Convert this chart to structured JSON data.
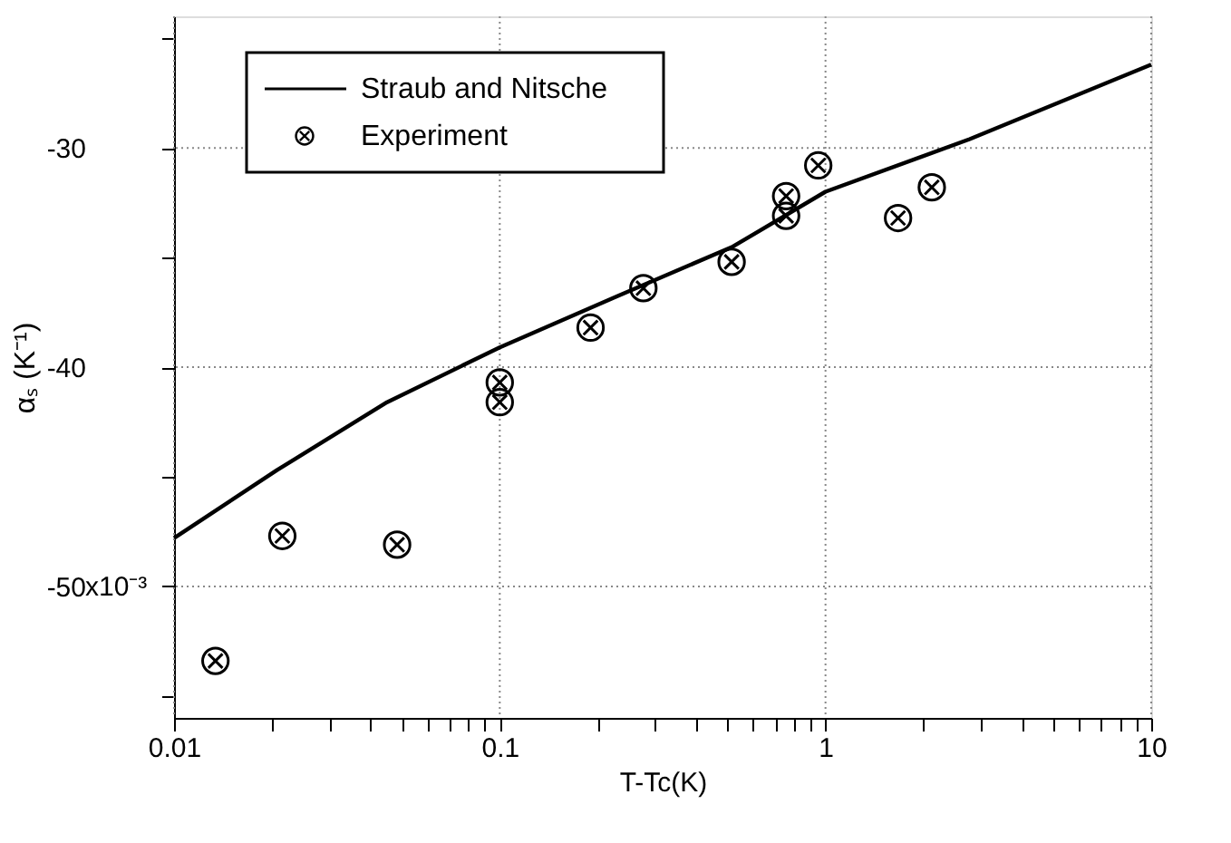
{
  "chart_data": {
    "type": "scatter",
    "xlabel": "T-Tc(K)",
    "ylabel": "αₛ (K⁻¹)",
    "annotations": [
      "x10⁻³"
    ],
    "log": "x",
    "grid": true,
    "legend": "top left",
    "xlim": [
      0.01,
      10
    ],
    "ylim": [
      -56,
      -24
    ],
    "xticks": [
      0.01,
      {
        "value": 0.02,
        "label": null
      },
      {
        "value": 0.03,
        "label": null
      },
      {
        "value": 0.04,
        "label": null
      },
      {
        "value": 0.05,
        "label": null
      },
      {
        "value": 0.06,
        "label": null
      },
      {
        "value": 0.07,
        "label": null
      },
      {
        "value": 0.08,
        "label": null
      },
      {
        "value": 0.09,
        "label": null
      },
      0.1,
      {
        "value": 0.2,
        "label": null
      },
      {
        "value": 0.3,
        "label": null
      },
      {
        "value": 0.4,
        "label": null
      },
      {
        "value": 0.5,
        "label": null
      },
      {
        "value": 0.6,
        "label": null
      },
      {
        "value": 0.7,
        "label": null
      },
      {
        "value": 0.8,
        "label": null
      },
      {
        "value": 0.9,
        "label": null
      },
      1,
      {
        "value": 2,
        "label": null
      },
      {
        "value": 3,
        "label": null
      },
      {
        "value": 4,
        "label": null
      },
      {
        "value": 5,
        "label": null
      },
      {
        "value": 6,
        "label": null
      },
      {
        "value": 7,
        "label": null
      },
      {
        "value": 8,
        "label": null
      },
      {
        "value": 9,
        "label": null
      },
      10
    ],
    "yticks": [
      {
        "value": -55,
        "label": null
      },
      -50,
      {
        "value": -45,
        "label": null
      },
      -40,
      {
        "value": -35,
        "label": null
      },
      -30,
      {
        "value": -25,
        "label": null
      }
    ],
    "series": [
      {
        "name": "Straub and Nitsche",
        "type": "line",
        "color": "#000000",
        "line_style": "solid",
        "x": [
          0.01,
          0.0207,
          0.0451,
          0.1,
          0.227,
          0.52,
          1.0,
          2.77,
          10
        ],
        "values": [
          -47.8,
          -44.7,
          -41.6,
          -39.1,
          -36.8,
          -34.5,
          -32.0,
          -29.6,
          -26.2
        ]
      },
      {
        "name": "Experiment",
        "color": "#000000",
        "marker": "cross",
        "x": [
          0.0134,
          0.0215,
          0.0484,
          0.1,
          0.1,
          0.19,
          0.276,
          0.515,
          0.757,
          0.757,
          0.95,
          1.67,
          2.12
        ],
        "values": [
          -53.4,
          -47.7,
          -48.1,
          -40.7,
          -41.6,
          -38.2,
          -36.4,
          -35.2,
          -32.2,
          -33.1,
          -30.8,
          -33.2,
          -31.8
        ]
      }
    ]
  }
}
